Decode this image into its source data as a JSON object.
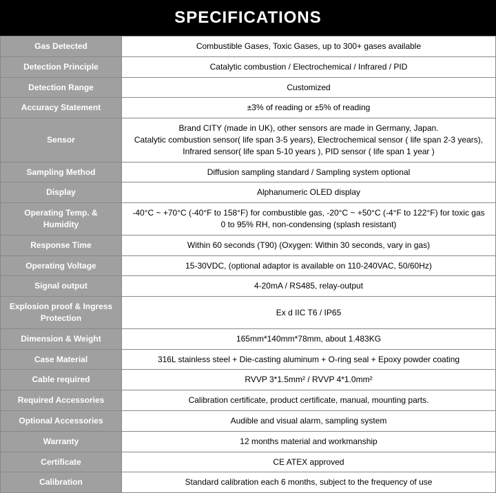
{
  "title": "SPECIFICATIONS",
  "colors": {
    "header_bg": "#000000",
    "header_fg": "#ffffff",
    "label_bg": "#a0a0a0",
    "label_fg": "#ffffff",
    "value_bg": "#ffffff",
    "value_fg": "#000000",
    "border": "#888888"
  },
  "rows": [
    {
      "label": "Gas Detected",
      "value": "Combustible Gases, Toxic Gases, up to 300+ gases available"
    },
    {
      "label": "Detection Principle",
      "value": "Catalytic combustion / Electrochemical / Infrared / PID"
    },
    {
      "label": "Detection Range",
      "value": "Customized"
    },
    {
      "label": "Accuracy Statement",
      "value": "±3% of reading or ±5% of reading"
    },
    {
      "label": "Sensor",
      "value": "Brand CITY (made in UK), other sensors are made in Germany, Japan.\nCatalytic combustion sensor( life span 3-5 years), Electrochemical sensor ( life span 2-3 years),\nInfrared sensor( life span 5-10 years ), PID sensor ( life span 1 year )"
    },
    {
      "label": "Sampling Method",
      "value": "Diffusion sampling standard / Sampling system optional"
    },
    {
      "label": "Display",
      "value": "Alphanumeric OLED display"
    },
    {
      "label": "Operating Temp. & Humidity",
      "value": "-40°C ~ +70°C (-40°F to 158°F) for combustible gas, -20°C ~ +50°C (-4°F to 122°F) for toxic gas\n0 to 95% RH, non-condensing (splash resistant)"
    },
    {
      "label": "Response Time",
      "value": "Within 60 seconds (T90) (Oxygen: Within 30 seconds, vary in gas)"
    },
    {
      "label": "Operating Voltage",
      "value": "15-30VDC, (optional adaptor is available on 110-240VAC, 50/60Hz)"
    },
    {
      "label": "Signal output",
      "value": "4-20mA / RS485, relay-output"
    },
    {
      "label": "Explosion proof & Ingress Protection",
      "value": "Ex d IIC T6 / IP65"
    },
    {
      "label": "Dimension & Weight",
      "value": "165mm*140mm*78mm, about 1.483KG"
    },
    {
      "label": "Case Material",
      "value": "316L stainless steel + Die-casting aluminum + O-ring seal + Epoxy powder coating"
    },
    {
      "label": "Cable required",
      "value": "RVVP 3*1.5mm² / RVVP 4*1.0mm²"
    },
    {
      "label": "Required Accessories",
      "value": "Calibration certificate, product certificate, manual, mounting parts."
    },
    {
      "label": "Optional Accessories",
      "value": "Audible and visual alarm, sampling system"
    },
    {
      "label": "Warranty",
      "value": "12 months material and workmanship"
    },
    {
      "label": "Certificate",
      "value": "CE ATEX approved"
    },
    {
      "label": "Calibration",
      "value": "Standard calibration each 6 months, subject to the frequency of use"
    }
  ]
}
